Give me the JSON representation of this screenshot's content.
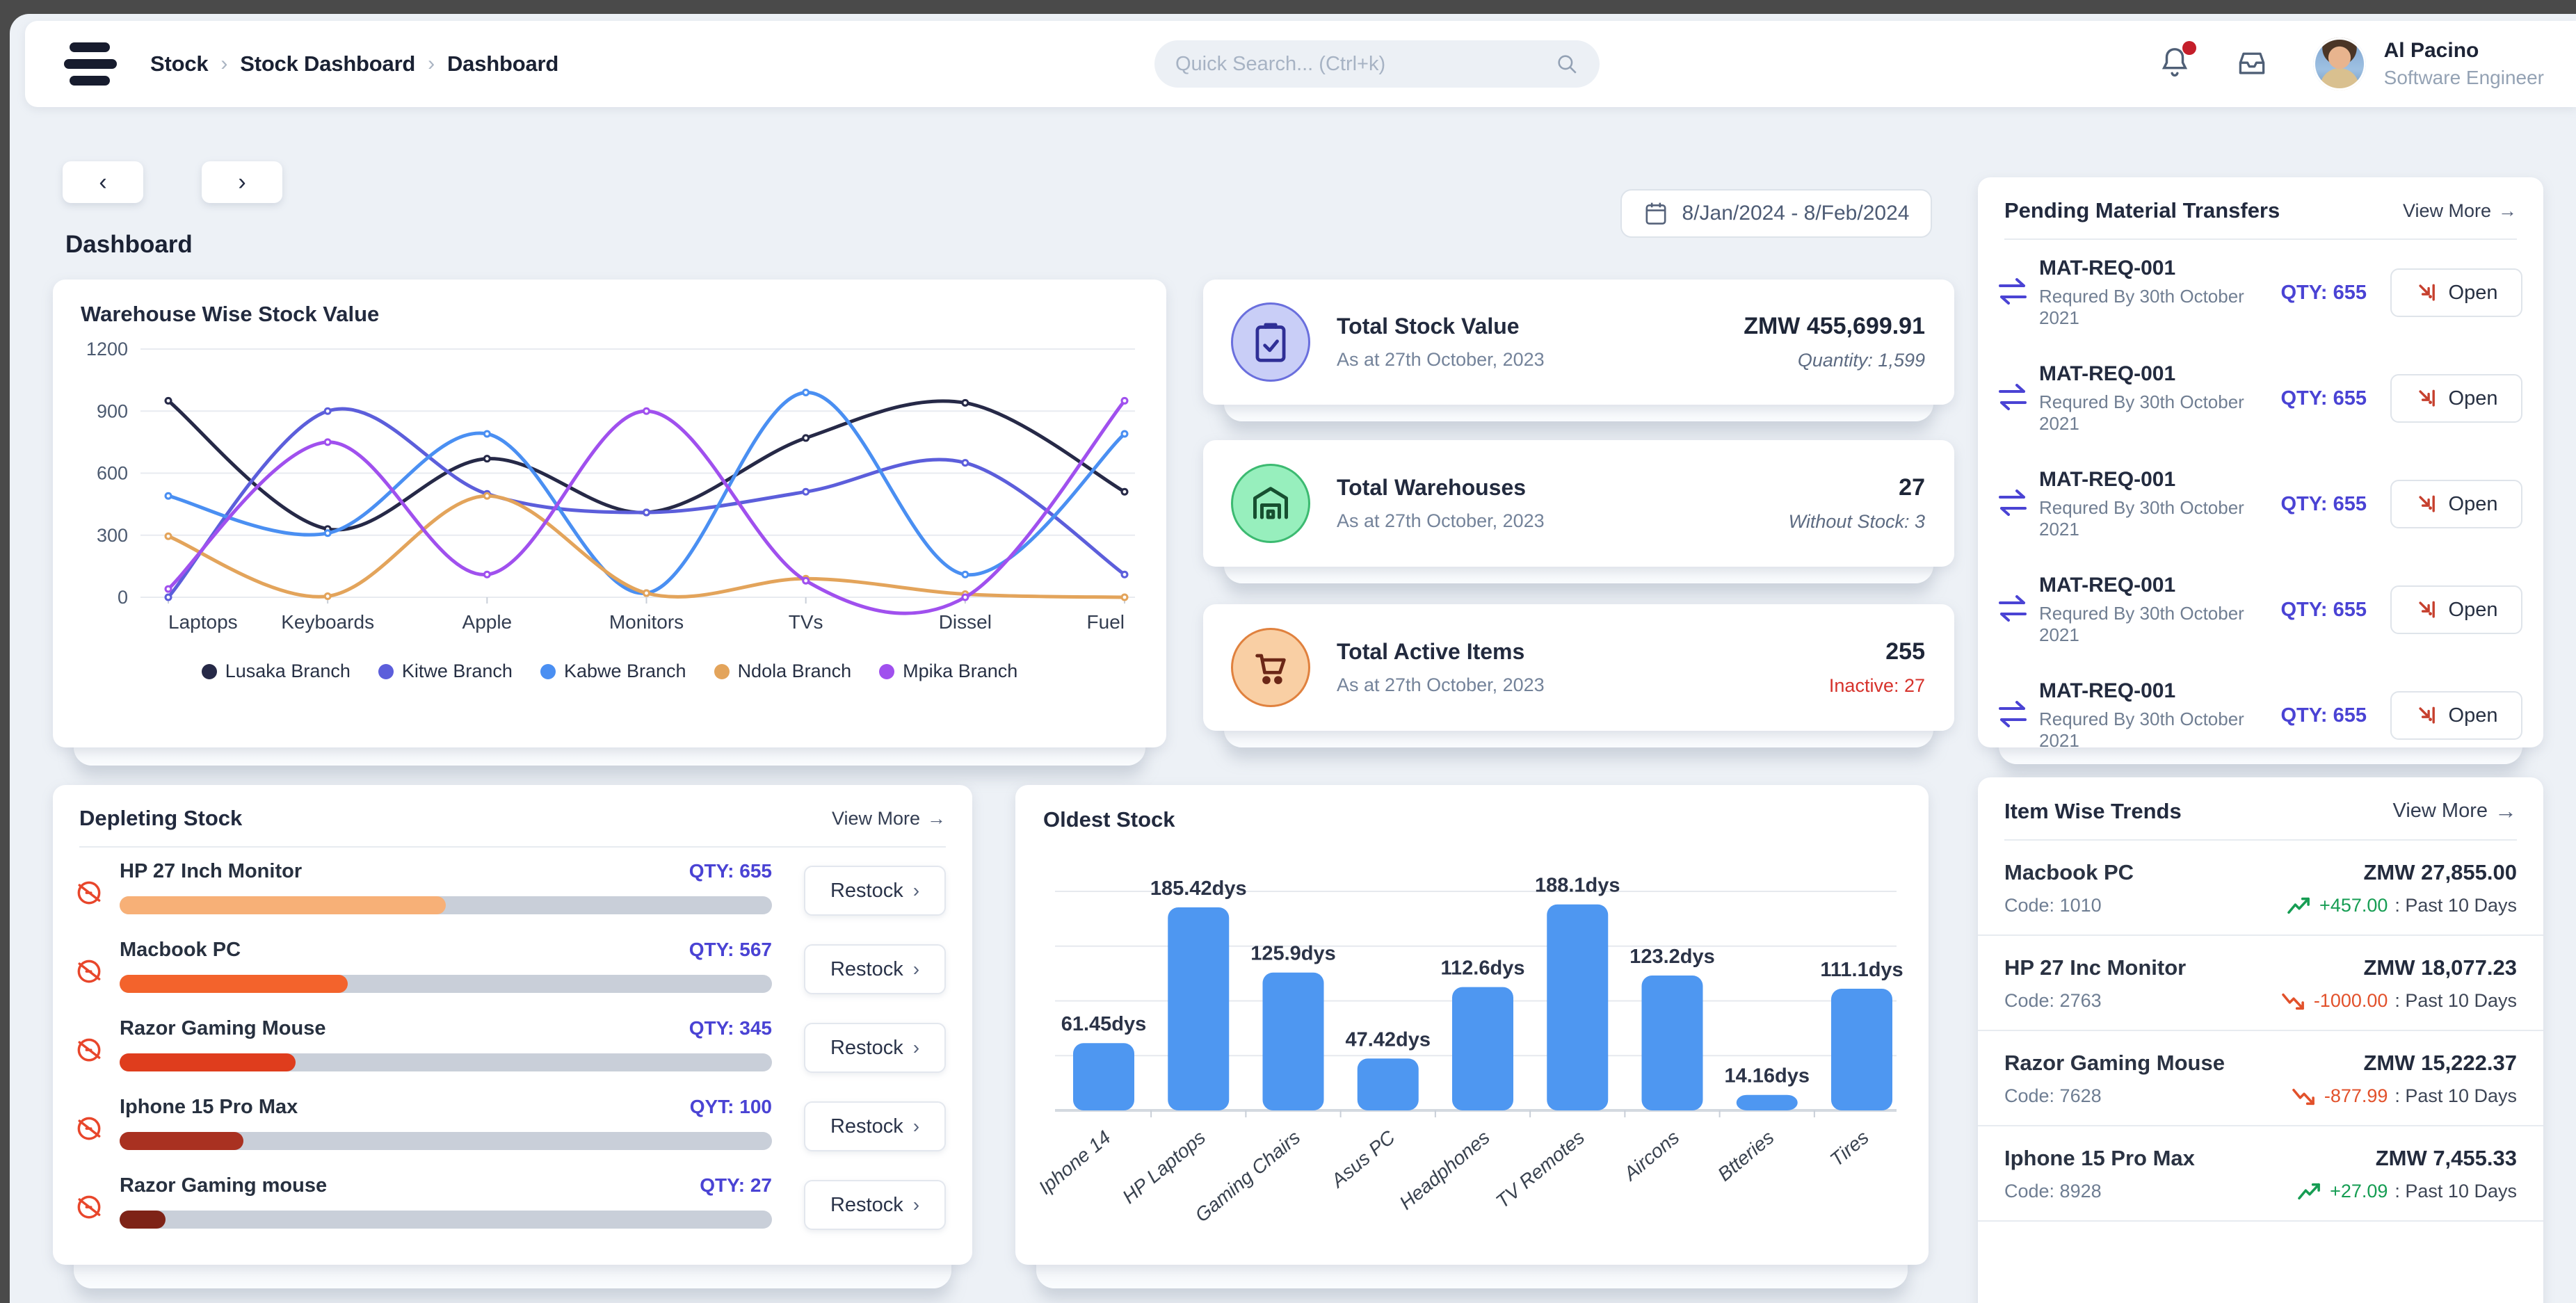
{
  "header": {
    "breadcrumb": [
      "Stock",
      "Stock Dashboard",
      "Dashboard"
    ],
    "breadcrumb_separator": "›",
    "search_placeholder": "Quick Search... (Ctrl+k)",
    "user": {
      "name": "Al Pacino",
      "role": "Software Engineer"
    }
  },
  "toolbar": {
    "prev": "‹",
    "next": "›",
    "page_title": "Dashboard",
    "date_range": "8/Jan/2024 - 8/Feb/2024"
  },
  "ui": {
    "arrow_right": "→",
    "chevron_right": "›"
  },
  "stat_cards": [
    {
      "title": "Total Stock Value",
      "subtitle": "As at 27th October, 2023",
      "value": "ZMW 455,699.91",
      "sub_value": "Quantity: 1,599",
      "icon": "clipboard-check-icon",
      "icon_bg": "#c9cef7",
      "icon_border": "#6a6fdd",
      "icon_color": "#2f2f96"
    },
    {
      "title": "Total Warehouses",
      "subtitle": "As at 27th October, 2023",
      "value": "27",
      "sub_value": "Without Stock: 3",
      "icon": "warehouse-icon",
      "icon_bg": "#97efbd",
      "icon_border": "#3cba71",
      "icon_color": "#174f30"
    },
    {
      "title": "Total Active Items",
      "subtitle": "As at 27th October, 2023",
      "value": "255",
      "sub_value": "Inactive: 27",
      "sub_value_color": "#d6322b",
      "icon": "cart-icon",
      "icon_bg": "#f9cfa4",
      "icon_border": "#e0813e",
      "icon_color": "#6b2717"
    }
  ],
  "pending": {
    "title": "Pending Material Transfers",
    "view_more": "View More",
    "open_label": "Open",
    "rows": [
      {
        "id": "MAT-REQ-001",
        "required": "Requred By 30th October 2021",
        "qty": "QTY: 655"
      },
      {
        "id": "MAT-REQ-001",
        "required": "Requred By 30th October 2021",
        "qty": "QTY: 655"
      },
      {
        "id": "MAT-REQ-001",
        "required": "Requred By 30th October 2021",
        "qty": "QTY: 655"
      },
      {
        "id": "MAT-REQ-001",
        "required": "Requred By 30th October 2021",
        "qty": "QTY: 655"
      },
      {
        "id": "MAT-REQ-001",
        "required": "Requred By 30th October 2021",
        "qty": "QTY: 655"
      }
    ]
  },
  "depleting": {
    "title": "Depleting Stock",
    "view_more": "View More",
    "restock_label": "Restock",
    "rows": [
      {
        "name": "HP 27 Inch Monitor",
        "qty": "QTY: 655",
        "pct": 50,
        "color": "#f7b077"
      },
      {
        "name": "Macbook PC",
        "qty": "QTY: 567",
        "pct": 35,
        "color": "#f3632c"
      },
      {
        "name": "Razor Gaming Mouse",
        "qty": "QTY: 345",
        "pct": 27,
        "color": "#df3d1d"
      },
      {
        "name": "Iphone 15 Pro Max",
        "qty": "QYT: 100",
        "pct": 19,
        "color": "#a93121"
      },
      {
        "name": "Razor Gaming mouse",
        "qty": "QTY: 27",
        "pct": 7,
        "color": "#7e2317"
      }
    ]
  },
  "item_trends": {
    "title": "Item Wise Trends",
    "view_more": "View More",
    "rows": [
      {
        "name": "Macbook PC",
        "code": "Code: 1010",
        "price": "ZMW 27,855.00",
        "delta": "+457.00",
        "period": ": Past 10 Days",
        "dir": "up"
      },
      {
        "name": "HP 27 Inc Monitor",
        "code": "Code: 2763",
        "price": "ZMW 18,077.23",
        "delta": "-1000.00",
        "period": " : Past 10 Days",
        "dir": "down"
      },
      {
        "name": "Razor Gaming Mouse",
        "code": "Code: 7628",
        "price": "ZMW 15,222.37",
        "delta": "-877.99",
        "period": " : Past 10 Days",
        "dir": "down"
      },
      {
        "name": "Iphone 15 Pro Max",
        "code": "Code: 8928",
        "price": "ZMW 7,455.33",
        "delta": "+27.09",
        "period": " : Past 10 Days",
        "dir": "up"
      }
    ]
  },
  "chart_data": [
    {
      "type": "line",
      "title": "Warehouse Wise Stock Value",
      "categories": [
        "Laptops",
        "Keyboards",
        "Apple",
        "Monitors",
        "TVs",
        "Dissel",
        "Fuel"
      ],
      "series": [
        {
          "name": "Lusaka Branch",
          "color": "#262947",
          "values": [
            950,
            330,
            670,
            410,
            770,
            940,
            510
          ]
        },
        {
          "name": "Kitwe Branch",
          "color": "#5c5edb",
          "values": [
            0,
            900,
            500,
            410,
            510,
            650,
            110
          ]
        },
        {
          "name": "Kabwe Branch",
          "color": "#4a8ff2",
          "values": [
            490,
            310,
            790,
            20,
            990,
            110,
            790
          ]
        },
        {
          "name": "Ndola Branch",
          "color": "#e3a45b",
          "values": [
            295,
            5,
            490,
            20,
            90,
            15,
            0
          ]
        },
        {
          "name": "Mpika Branch",
          "color": "#a050ee",
          "values": [
            40,
            750,
            110,
            900,
            80,
            0,
            950
          ]
        }
      ],
      "ylim": [
        0,
        1200
      ],
      "yticks": [
        0,
        300,
        600,
        900,
        1200
      ],
      "grid": true,
      "legend_position": "bottom"
    },
    {
      "type": "bar",
      "title": "Oldest Stock",
      "categories": [
        "Iphone 14",
        "HP Laptops",
        "Gaming Chairs",
        "Asus PC",
        "Headphones",
        "TV Remotes",
        "Aircons",
        "Btteries",
        "Tires"
      ],
      "values": [
        61.45,
        185.42,
        125.9,
        47.42,
        112.6,
        188.1,
        123.2,
        14.16,
        111.1
      ],
      "labels": [
        "61.45dys",
        "185.42dys",
        "125.9dys",
        "47.42dys",
        "112.6dys",
        "188.1dys",
        "123.2dys",
        "14.16dys",
        "111.1dys"
      ],
      "bar_color": "#4e97f1",
      "ylim": [
        0,
        200
      ],
      "grid": true,
      "xlabel": "",
      "ylabel": ""
    }
  ],
  "colors": {
    "accent_indigo": "#4a43d4",
    "open_icon_red": "#c6402e",
    "ban_icon_red": "#e8462b",
    "trend_up_green": "#169d53",
    "trend_down_red": "#e2512b",
    "inactive_red": "#d6322b"
  }
}
